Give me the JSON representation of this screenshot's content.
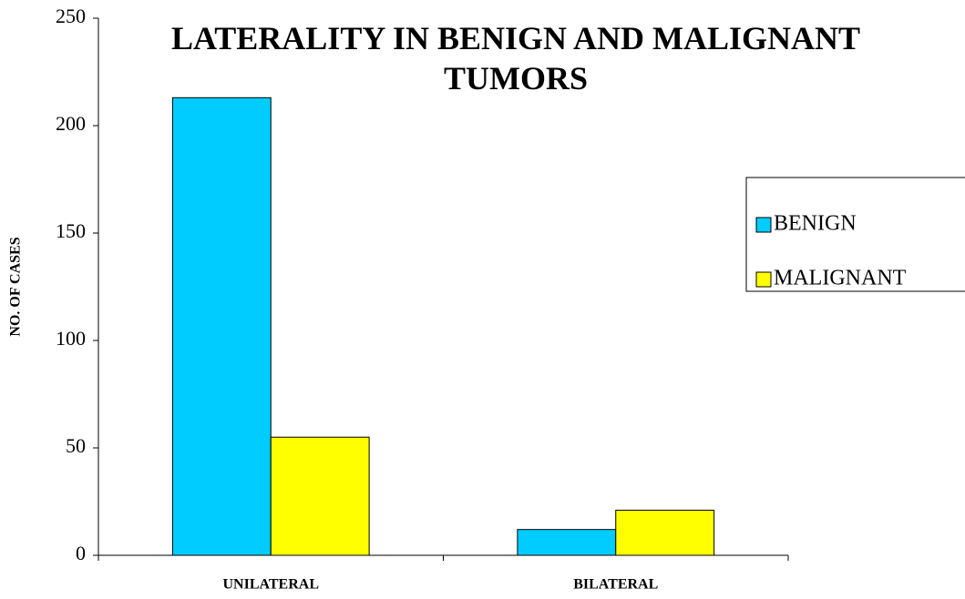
{
  "chart_data": {
    "type": "bar",
    "title": "LATERALITY IN BENIGN AND MALIGNANT TUMORS",
    "y_label": "NO. OF CASES",
    "categories": [
      "UNILATERAL",
      "BILATERAL"
    ],
    "series": [
      {
        "name": "BENIGN",
        "color": "#00ccff",
        "values": [
          213,
          12
        ]
      },
      {
        "name": "MALIGNANT",
        "color": "#ffff00",
        "values": [
          55,
          21
        ]
      }
    ],
    "ylim": [
      0,
      250
    ],
    "yticks": [
      0,
      50,
      100,
      150,
      200,
      250
    ],
    "grid": false,
    "legend": "right"
  }
}
